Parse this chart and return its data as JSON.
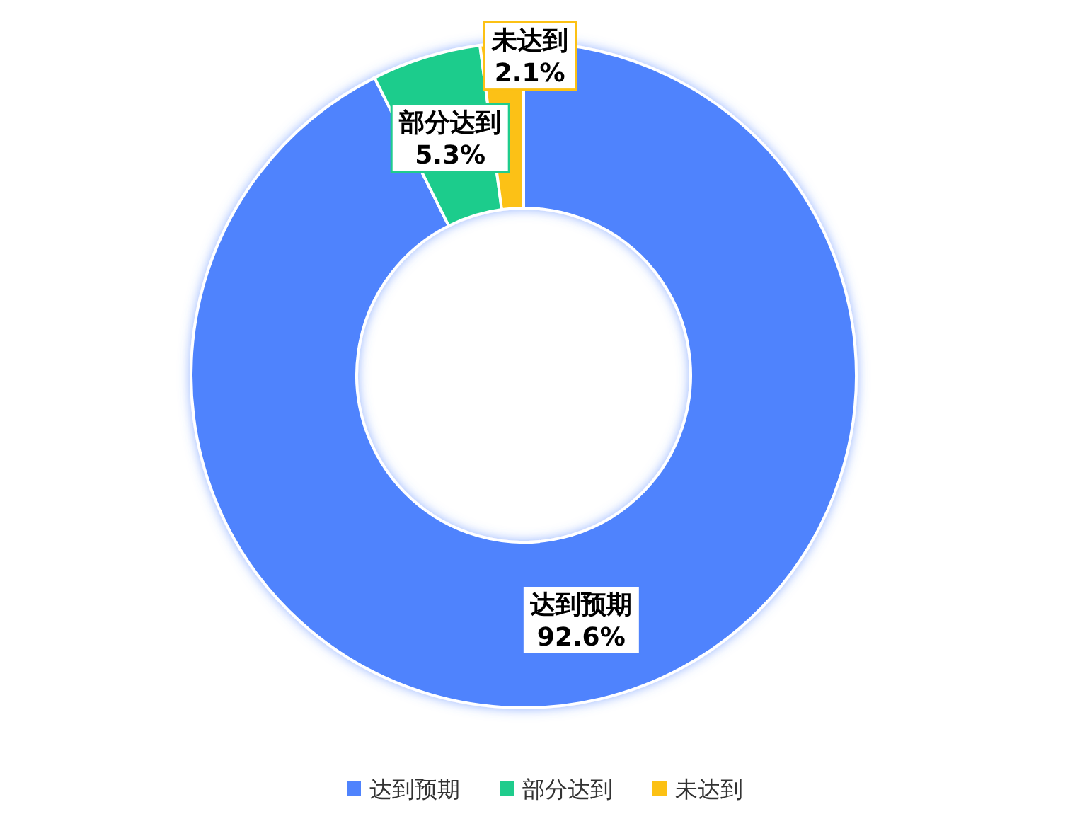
{
  "chart_data": {
    "type": "donut",
    "categories": [
      "达到预期",
      "部分达到",
      "未达到"
    ],
    "values": [
      92.6,
      5.3,
      2.1
    ],
    "colors": [
      "#4f83fd",
      "#1fcc8c",
      "#fcc114"
    ],
    "value_labels": [
      "92.6%",
      "5.3%",
      "2.1%"
    ],
    "legend": "bottom"
  }
}
